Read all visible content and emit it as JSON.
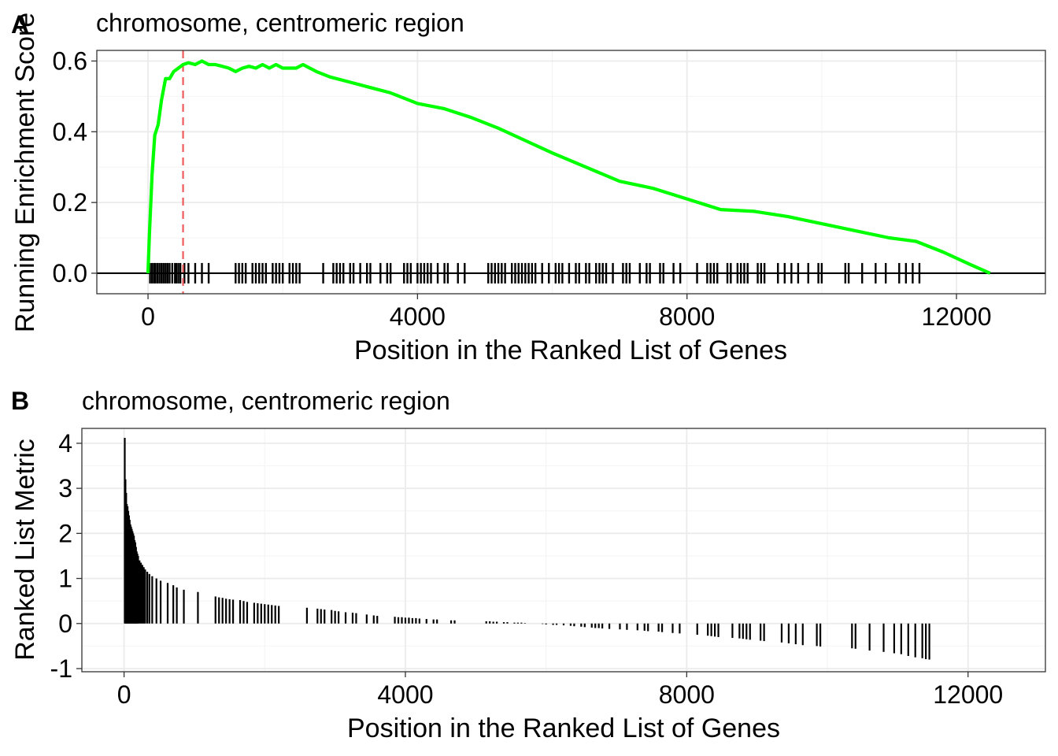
{
  "chart_data": [
    {
      "panel": "A",
      "type": "line",
      "title": "chromosome, centromeric region",
      "xlabel": "Position in the Ranked List of Genes",
      "ylabel": "Running Enrichment Score",
      "xlim": [
        -760,
        13320
      ],
      "ylim": [
        -0.058,
        0.63
      ],
      "xticks": [
        0,
        4000,
        8000,
        12000
      ],
      "xtick_labels": [
        "0",
        "4000",
        "8000",
        "12000"
      ],
      "yticks": [
        0,
        0.2,
        0.4,
        0.6
      ],
      "ytick_labels": [
        "0.0",
        "0.2",
        "0.4",
        "0.6"
      ],
      "grid": true,
      "line_color": "#00ff00",
      "peak_color": "#ef5a5a",
      "peak_position": 520,
      "zero_line": true,
      "series": [
        {
          "x": [
            0,
            20,
            60,
            100,
            150,
            200,
            260,
            320,
            380,
            450,
            520,
            600,
            700,
            800,
            900,
            1000,
            1100,
            1200,
            1300,
            1400,
            1500,
            1600,
            1700,
            1800,
            1900,
            2000,
            2100,
            2200,
            2300,
            2500,
            2700,
            3000,
            3300,
            3600,
            4000,
            4400,
            4800,
            5200,
            5600,
            6000,
            6500,
            7000,
            7500,
            8000,
            8500,
            9000,
            9500,
            10000,
            10500,
            11000,
            11400,
            11800,
            12200,
            12500
          ],
          "y": [
            0,
            0.11,
            0.28,
            0.39,
            0.42,
            0.49,
            0.55,
            0.55,
            0.57,
            0.58,
            0.59,
            0.595,
            0.59,
            0.6,
            0.59,
            0.59,
            0.585,
            0.58,
            0.57,
            0.58,
            0.585,
            0.58,
            0.59,
            0.58,
            0.59,
            0.58,
            0.58,
            0.58,
            0.59,
            0.57,
            0.555,
            0.54,
            0.525,
            0.51,
            0.48,
            0.465,
            0.44,
            0.41,
            0.375,
            0.34,
            0.3,
            0.26,
            0.24,
            0.21,
            0.18,
            0.175,
            0.16,
            0.14,
            0.12,
            0.1,
            0.09,
            0.06,
            0.025,
            0
          ]
        }
      ],
      "hit_positions": [
        30,
        60,
        90,
        110,
        140,
        170,
        200,
        230,
        260,
        290,
        320,
        360,
        400,
        420,
        450,
        480,
        540,
        600,
        700,
        800,
        900,
        1300,
        1350,
        1400,
        1450,
        1550,
        1600,
        1650,
        1700,
        1750,
        1850,
        1900,
        1950,
        2000,
        2100,
        2150,
        2200,
        2250,
        2600,
        2750,
        2800,
        2850,
        2900,
        3000,
        3050,
        3150,
        3250,
        3300,
        3450,
        3550,
        3600,
        3800,
        3850,
        3900,
        4000,
        4050,
        4100,
        4150,
        4200,
        4300,
        4400,
        4450,
        4600,
        4700,
        5050,
        5100,
        5150,
        5200,
        5250,
        5300,
        5400,
        5450,
        5500,
        5550,
        5600,
        5650,
        5700,
        5750,
        5850,
        5950,
        6050,
        6100,
        6150,
        6250,
        6350,
        6400,
        6500,
        6550,
        6650,
        6700,
        6750,
        6800,
        6900,
        7050,
        7100,
        7150,
        7300,
        7400,
        7450,
        7600,
        7650,
        7800,
        7900,
        8150,
        8300,
        8350,
        8400,
        8450,
        8600,
        8650,
        8750,
        8800,
        8850,
        8900,
        9050,
        9100,
        9150,
        9350,
        9450,
        9550,
        9650,
        9800,
        9950,
        10000,
        10350,
        10400,
        10600,
        10800,
        10950,
        11150,
        11250,
        11350,
        11450
      ]
    },
    {
      "panel": "B",
      "type": "bar",
      "title": "chromosome, centromeric region",
      "xlabel": "Position in the Ranked List of Genes",
      "ylabel": "Ranked List Metric",
      "xlim": [
        -600,
        13100
      ],
      "ylim": [
        -1.07,
        4.33
      ],
      "xticks": [
        0,
        4000,
        8000,
        12000
      ],
      "xtick_labels": [
        "0",
        "4000",
        "8000",
        "12000"
      ],
      "yticks": [
        -1,
        0,
        1,
        2,
        3,
        4
      ],
      "ytick_labels": [
        "-1",
        "0",
        "1",
        "2",
        "3",
        "4"
      ],
      "grid": true,
      "bar_color": "#000000",
      "positions": [
        10,
        20,
        30,
        40,
        50,
        60,
        70,
        80,
        90,
        100,
        110,
        120,
        130,
        140,
        150,
        160,
        170,
        180,
        190,
        200,
        220,
        240,
        260,
        280,
        300,
        330,
        360,
        400,
        460,
        520,
        620,
        700,
        750,
        850,
        1050,
        1300,
        1350,
        1400,
        1450,
        1500,
        1550,
        1650,
        1700,
        1750,
        1850,
        1900,
        1950,
        2000,
        2050,
        2100,
        2150,
        2200,
        2600,
        2750,
        2800,
        2850,
        2950,
        3000,
        3050,
        3150,
        3250,
        3300,
        3450,
        3550,
        3600,
        3850,
        3900,
        3950,
        4000,
        4050,
        4100,
        4150,
        4200,
        4300,
        4400,
        4450,
        4650,
        4700,
        5150,
        5200,
        5250,
        5300,
        5400,
        5450,
        5550,
        5600,
        5650,
        5700,
        5800,
        5850,
        5950,
        6000,
        6100,
        6150,
        6250,
        6350,
        6400,
        6500,
        6550,
        6650,
        6700,
        6750,
        6800,
        6900,
        7050,
        7150,
        7300,
        7400,
        7450,
        7600,
        7650,
        7800,
        7900,
        8150,
        8300,
        8350,
        8400,
        8450,
        8650,
        8750,
        8800,
        8850,
        8900,
        9050,
        9100,
        9350,
        9450,
        9550,
        9650,
        9850,
        9900,
        10350,
        10400,
        10600,
        10800,
        10950,
        11050,
        11150,
        11250,
        11350,
        11400,
        11450
      ],
      "values": [
        4.12,
        3.2,
        2.9,
        2.65,
        2.6,
        2.5,
        2.4,
        2.3,
        2.2,
        2.15,
        2.1,
        2.05,
        2.0,
        1.95,
        1.85,
        1.8,
        1.7,
        1.6,
        1.55,
        1.5,
        1.4,
        1.35,
        1.3,
        1.25,
        1.2,
        1.15,
        1.1,
        1.05,
        1.0,
        0.95,
        0.9,
        0.85,
        0.8,
        0.75,
        0.7,
        0.6,
        0.58,
        0.57,
        0.55,
        0.54,
        0.53,
        0.52,
        0.5,
        0.48,
        0.46,
        0.45,
        0.44,
        0.43,
        0.42,
        0.41,
        0.4,
        0.39,
        0.35,
        0.33,
        0.32,
        0.31,
        0.3,
        0.28,
        0.27,
        0.25,
        0.24,
        0.23,
        0.2,
        0.18,
        0.17,
        0.15,
        0.14,
        0.14,
        0.13,
        0.13,
        0.12,
        0.12,
        0.11,
        0.1,
        0.09,
        0.09,
        0.07,
        0.07,
        0.05,
        0.05,
        0.04,
        0.04,
        0.03,
        0.03,
        0.02,
        0.02,
        0.02,
        0.01,
        0.0,
        0.0,
        -0.01,
        -0.02,
        -0.03,
        -0.03,
        -0.04,
        -0.05,
        -0.06,
        -0.07,
        -0.08,
        -0.09,
        -0.1,
        -0.1,
        -0.11,
        -0.12,
        -0.13,
        -0.14,
        -0.15,
        -0.16,
        -0.17,
        -0.18,
        -0.19,
        -0.21,
        -0.22,
        -0.25,
        -0.27,
        -0.28,
        -0.29,
        -0.3,
        -0.32,
        -0.33,
        -0.34,
        -0.35,
        -0.36,
        -0.38,
        -0.39,
        -0.42,
        -0.44,
        -0.46,
        -0.48,
        -0.5,
        -0.51,
        -0.55,
        -0.56,
        -0.6,
        -0.63,
        -0.66,
        -0.68,
        -0.72,
        -0.75,
        -0.77,
        -0.79,
        -0.8
      ]
    }
  ]
}
